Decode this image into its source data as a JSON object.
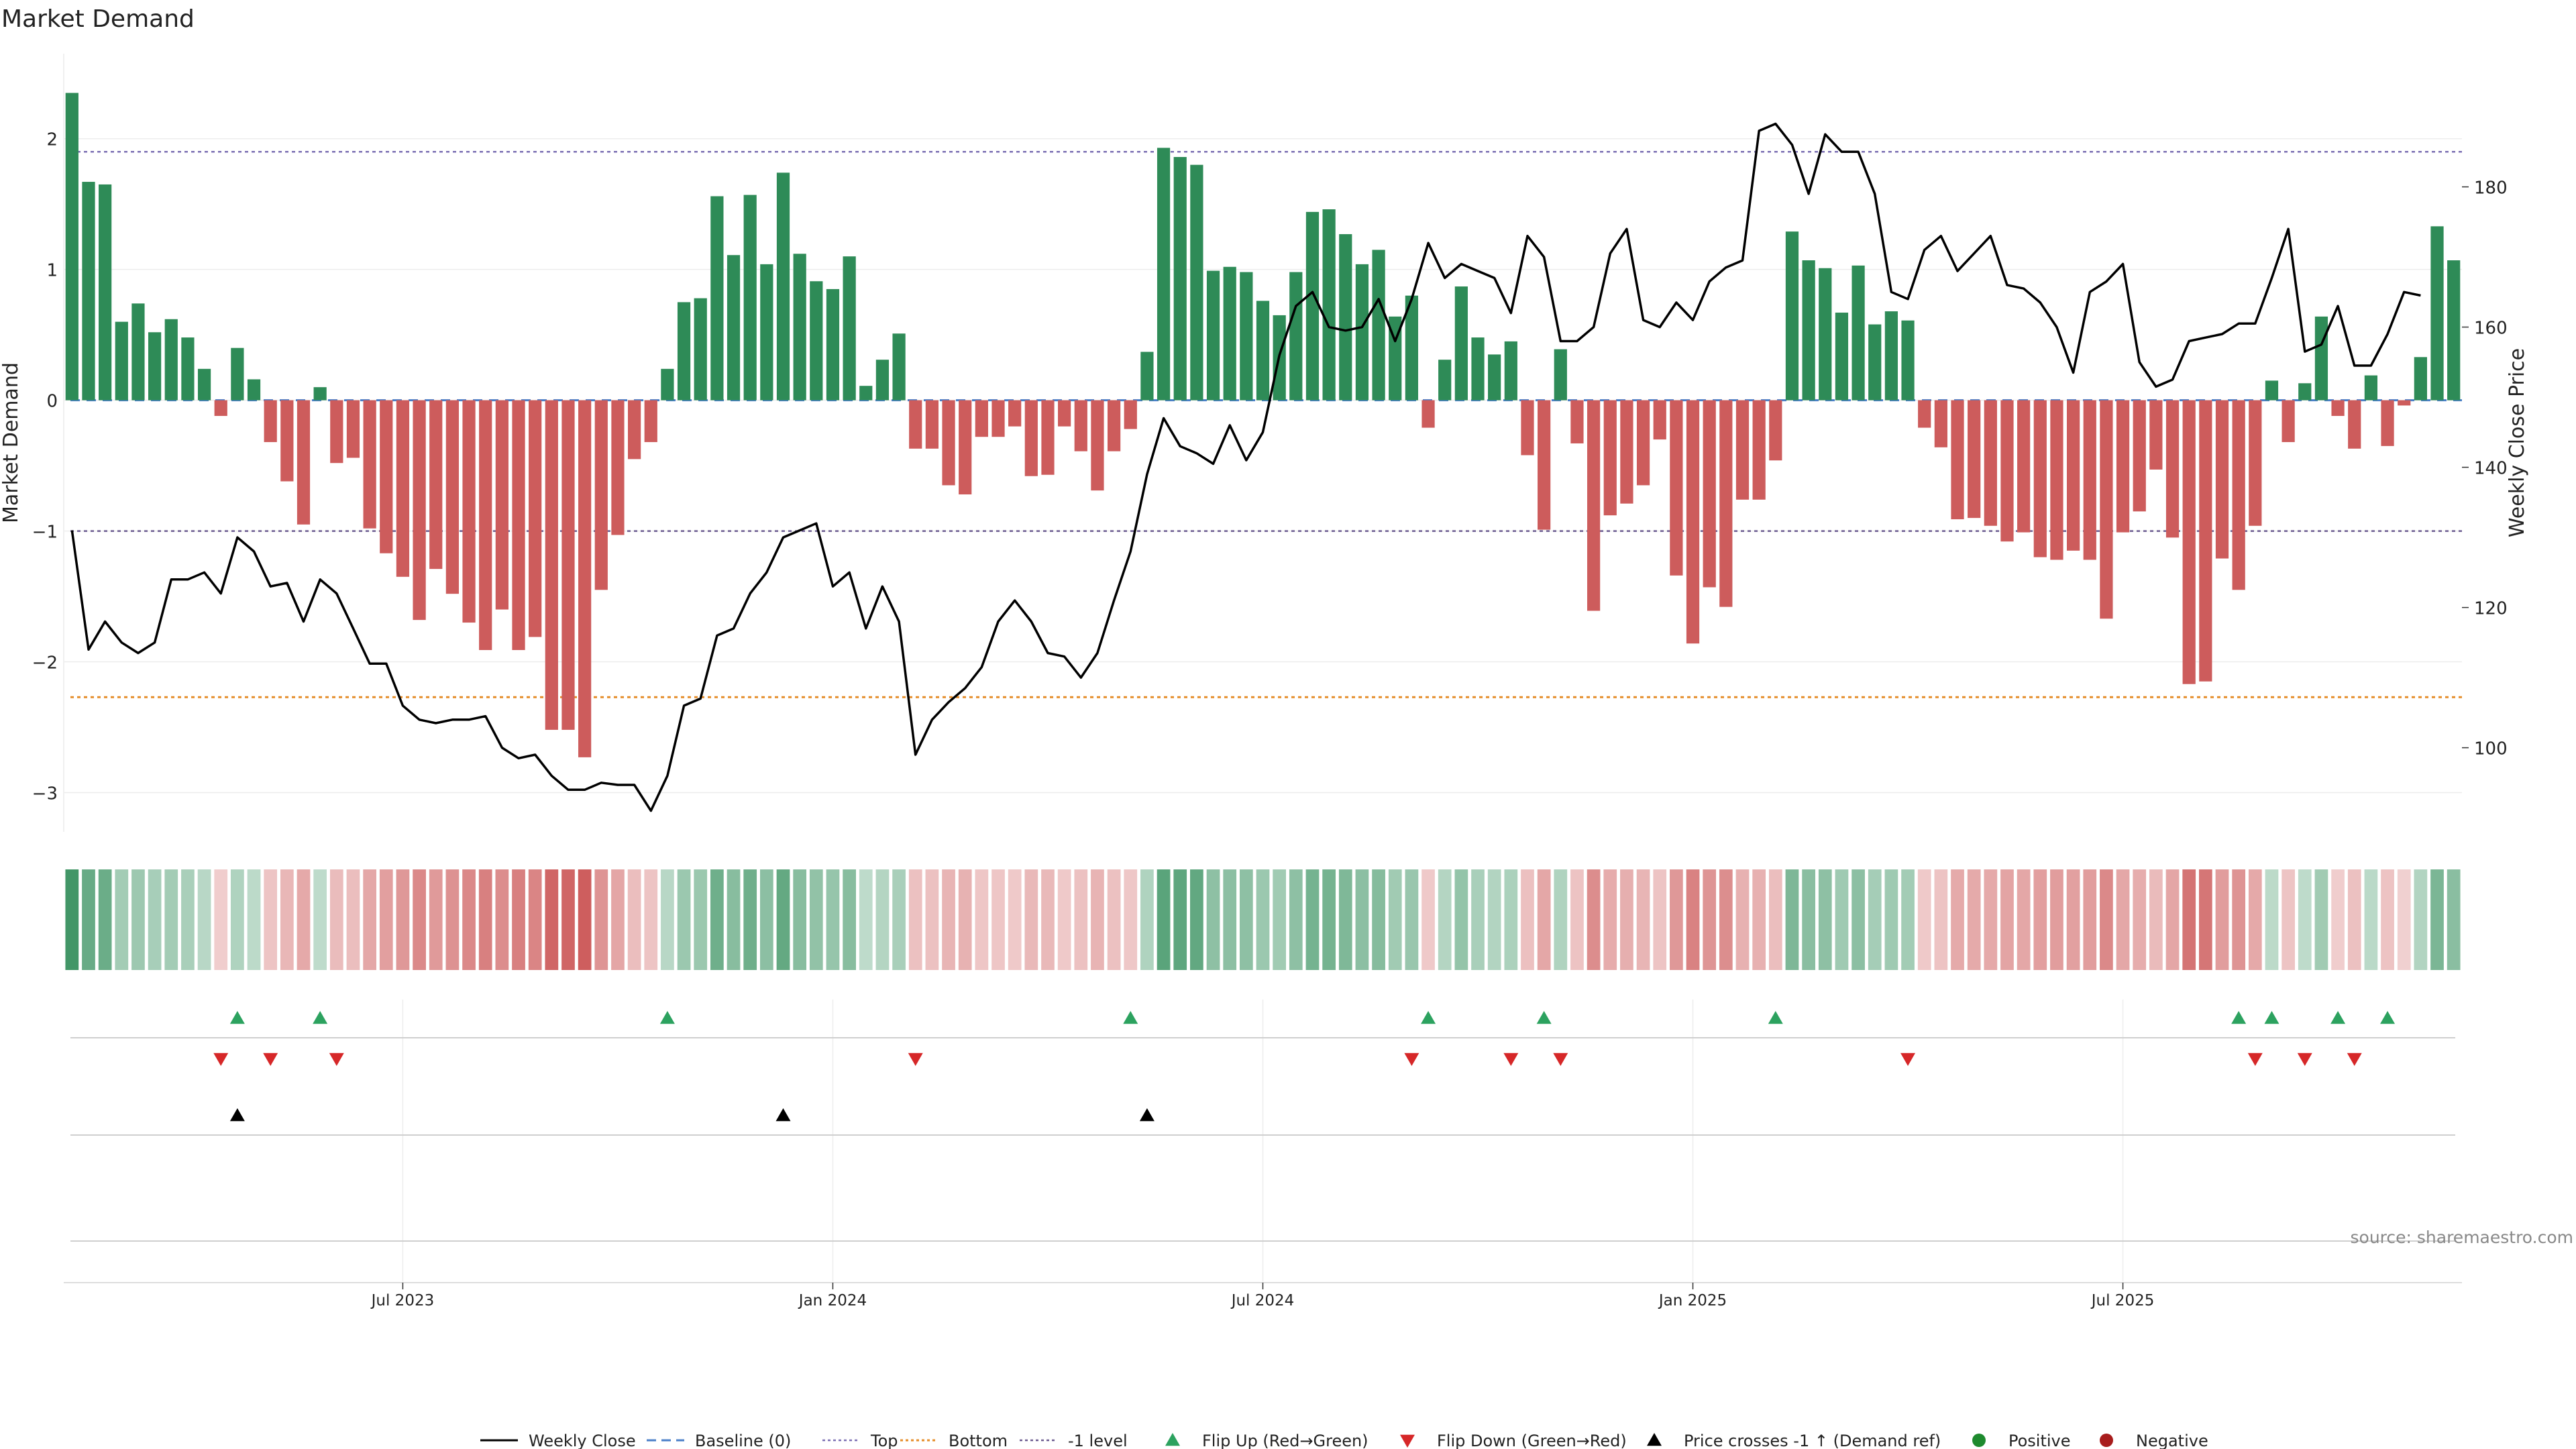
{
  "chart_data": {
    "type": "bar",
    "title": "Market Demand",
    "ylabel": "Market Demand",
    "y2label": "Weekly Close Price",
    "ylim": [
      -3.3,
      2.65
    ],
    "y2lim": [
      88,
      199
    ],
    "y_ticks": [
      2,
      1,
      0,
      -1,
      -2,
      -3
    ],
    "y_tick_labels": [
      "2",
      "1",
      "0",
      "−1",
      "−2",
      "−3"
    ],
    "y2_ticks": [
      180,
      160,
      140,
      120,
      100
    ],
    "y2_tick_labels": [
      "180",
      "160",
      "140",
      "120",
      "100"
    ],
    "x_tick_labels": [
      "Jul 2023",
      "Jan 2024",
      "Jul 2024",
      "Jan 2025",
      "Jul 2025"
    ],
    "x_tick_index": [
      20,
      46,
      72,
      98,
      124
    ],
    "levels": {
      "top": 1.9,
      "bottom": -2.27,
      "minus_one": -1.0
    },
    "demand": [
      2.35,
      1.67,
      1.65,
      0.6,
      0.74,
      0.52,
      0.62,
      0.48,
      0.24,
      -0.12,
      0.4,
      0.16,
      -0.32,
      -0.62,
      -0.95,
      0.1,
      -0.48,
      -0.44,
      -0.98,
      -1.17,
      -1.35,
      -1.68,
      -1.29,
      -1.48,
      -1.7,
      -1.91,
      -1.6,
      -1.91,
      -1.81,
      -2.52,
      -2.52,
      -2.73,
      -1.45,
      -1.03,
      -0.45,
      -0.32,
      0.24,
      0.75,
      0.78,
      1.56,
      1.11,
      1.57,
      1.04,
      1.74,
      1.12,
      0.91,
      0.85,
      1.1,
      0.11,
      0.31,
      0.51,
      -0.37,
      -0.37,
      -0.65,
      -0.72,
      -0.28,
      -0.28,
      -0.2,
      -0.58,
      -0.57,
      -0.2,
      -0.39,
      -0.69,
      -0.39,
      -0.22,
      0.37,
      1.93,
      1.86,
      1.8,
      0.99,
      1.02,
      0.98,
      0.76,
      0.65,
      0.98,
      1.44,
      1.46,
      1.27,
      1.04,
      1.15,
      0.64,
      0.8,
      -0.21,
      0.31,
      0.87,
      0.48,
      0.35,
      0.45,
      -0.42,
      -0.99,
      0.39,
      -0.33,
      -1.61,
      -0.88,
      -0.79,
      -0.65,
      -0.3,
      -1.34,
      -1.86,
      -1.43,
      -1.58,
      -0.76,
      -0.76,
      -0.46,
      1.29,
      1.07,
      1.01,
      0.67,
      1.03,
      0.58,
      0.68,
      0.61,
      -0.21,
      -0.36,
      -0.91,
      -0.9,
      -0.96,
      -1.08,
      -1.01,
      -1.2,
      -1.22,
      -1.15,
      -1.22,
      -1.67,
      -1.01,
      -0.85,
      -0.53,
      -1.05,
      -2.17,
      -2.15,
      -1.21,
      -1.45,
      -0.96,
      0.15,
      -0.32,
      0.13,
      0.64,
      -0.12,
      -0.37,
      0.19,
      -0.35,
      -0.04,
      0.33,
      1.33,
      1.07
    ],
    "weekly_close": [
      131,
      114,
      118,
      115,
      113.5,
      115,
      124,
      124,
      125,
      122,
      130,
      128,
      123,
      123.5,
      118,
      124,
      122,
      117,
      112,
      112,
      106,
      104,
      103.5,
      104,
      104,
      104.5,
      100,
      98.5,
      99,
      96,
      94,
      94,
      95,
      94.7,
      94.7,
      91,
      96,
      106,
      107,
      116,
      117,
      122,
      125,
      130,
      131,
      132,
      123,
      125,
      117,
      123,
      118,
      99,
      104,
      106.5,
      108.5,
      111.5,
      118,
      121,
      118,
      113.5,
      113,
      110,
      113.5,
      121,
      128,
      139,
      147,
      143,
      142,
      140.5,
      146,
      141,
      145,
      156,
      163,
      165,
      160,
      159.5,
      160,
      164,
      158,
      164,
      172,
      167,
      169,
      168,
      167,
      162,
      173,
      170,
      158,
      158,
      160,
      170.5,
      174,
      161,
      160,
      163.5,
      161,
      166.5,
      168.5,
      169.5,
      188,
      189,
      186,
      179,
      187.5,
      185,
      185,
      179,
      165,
      164,
      171,
      173,
      168,
      170.5,
      173,
      166,
      165.5,
      163.5,
      160,
      153.5,
      165,
      166.5,
      169,
      155,
      151.5,
      152.5,
      158,
      158.5,
      159,
      160.5,
      160.5,
      167,
      174,
      156.5,
      157.5,
      163,
      154.5,
      154.5,
      159,
      165,
      164.5
    ],
    "flip_up_index": [
      10,
      15,
      36,
      64,
      82,
      89,
      103,
      131,
      133,
      137,
      140
    ],
    "flip_down_index": [
      9,
      12,
      16,
      51,
      81,
      87,
      90,
      111,
      132,
      135,
      138
    ],
    "price_cross_index": [
      10,
      43,
      65
    ],
    "legend": [
      "Weekly Close",
      "Baseline (0)",
      "Top",
      "Bottom",
      "-1 level",
      "Flip Up (Red→Green)",
      "Flip Down (Green→Red)",
      "Price crosses -1 ↑ (Demand ref)",
      "Positive",
      "Negative"
    ],
    "legend_position": "bottom",
    "source": "source: sharemaestro.com"
  },
  "colors": {
    "positive": "#2e8b57",
    "negative": "#cd5c5c",
    "price": "#000000",
    "baseline": "#4a7fc8",
    "top": "#7b6fb3",
    "bottom": "#e58e2a",
    "minus_one": "#6a5a8f",
    "flip_up": "#2ca25f",
    "flip_down": "#d62728",
    "cross": "#000000",
    "positive_dot": "#1e8a2e",
    "negative_dot": "#a81c1c"
  }
}
